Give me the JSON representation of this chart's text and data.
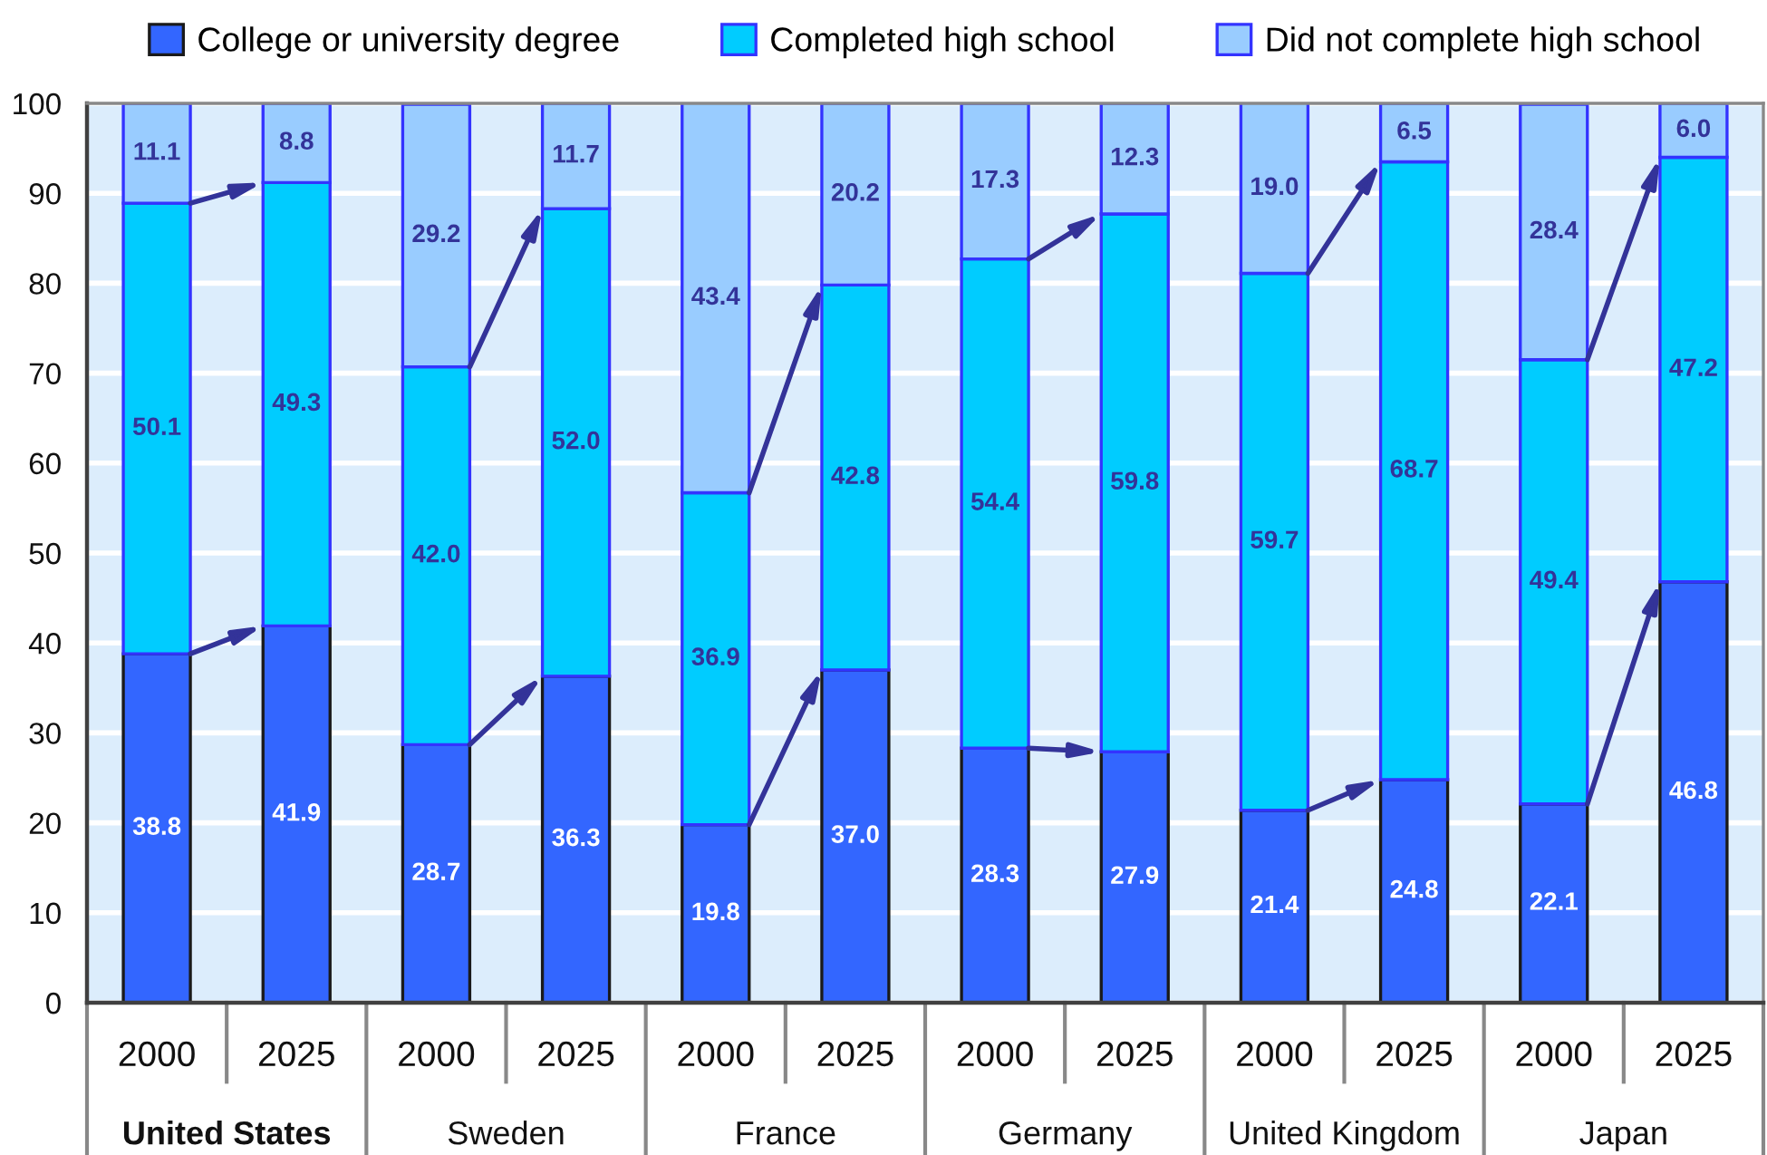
{
  "chart_data": {
    "type": "bar",
    "stacked": true,
    "categories": [
      "2000",
      "2025",
      "2000",
      "2025",
      "2000",
      "2025",
      "2000",
      "2025",
      "2000",
      "2025",
      "2000",
      "2025"
    ],
    "series": [
      {
        "name": "College or university degree",
        "color": "#3366ff",
        "values": [
          38.8,
          41.9,
          28.7,
          36.3,
          19.8,
          37.0,
          28.3,
          27.9,
          21.4,
          24.8,
          22.1,
          46.8
        ],
        "value_labels": [
          "38.8",
          "41.9",
          "28.7",
          "36.3",
          "19.8",
          "37.0",
          "28.3",
          "27.9",
          "21.4",
          "24.8",
          "22.1",
          "46.8"
        ]
      },
      {
        "name": "Completed high school",
        "color": "#00ccff",
        "values": [
          50.1,
          49.3,
          42.0,
          52.0,
          36.9,
          42.8,
          54.4,
          59.8,
          59.7,
          68.7,
          49.4,
          47.2
        ],
        "value_labels": [
          "50.1",
          "49.3",
          "42.0",
          "52.0",
          "36.9",
          "42.8",
          "54.4",
          "59.8",
          "59.7",
          "68.7",
          "49.4",
          "47.2"
        ]
      },
      {
        "name": "Did not complete high school",
        "color": "#99ccff",
        "values": [
          11.1,
          8.8,
          29.2,
          11.7,
          43.4,
          20.2,
          17.3,
          12.3,
          19.0,
          6.5,
          28.4,
          6.0
        ],
        "value_labels": [
          "11.1",
          "8.8",
          "29.2",
          "11.7",
          "43.4",
          "20.2",
          "17.3",
          "12.3",
          "19.0",
          "6.5",
          "28.4",
          "6.0"
        ]
      }
    ],
    "ylim": [
      0,
      100
    ],
    "yticks": [
      0,
      10,
      20,
      30,
      40,
      50,
      60,
      70,
      80,
      90,
      100
    ],
    "grid": "y",
    "legend": "top",
    "annotations": [
      "United States",
      "Sweden",
      "France",
      "Germany",
      "United Kingdom",
      "Japan"
    ]
  }
}
